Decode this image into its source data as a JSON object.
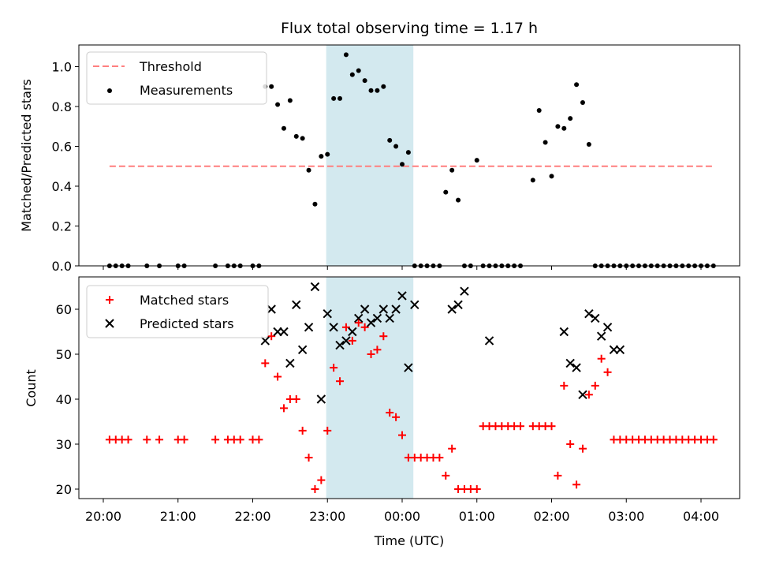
{
  "chart_data": [
    {
      "type": "scatter",
      "title": "Flux total observing time = 1.17 h",
      "xlabel": "",
      "ylabel": "Matched/Predicted stars",
      "ylim": [
        0,
        1.1
      ],
      "yticks": [
        "0.0",
        "0.2",
        "0.4",
        "0.6",
        "0.8",
        "1.0"
      ],
      "highlight_span": {
        "from": "22:59",
        "to": "00:09",
        "color": "#d3e9ef"
      },
      "legend": {
        "placement": "upper-left",
        "entries": [
          "Threshold",
          "Measurements"
        ]
      },
      "series": [
        {
          "name": "Threshold",
          "style": "dashed-line",
          "color": "#ff7f7f",
          "x": [
            "20:05",
            "04:10"
          ],
          "y": [
            0.5,
            0.5
          ]
        },
        {
          "name": "Measurements",
          "style": "dot",
          "color": "#000000",
          "x": [
            "20:05",
            "20:10",
            "20:15",
            "20:20",
            "20:35",
            "20:45",
            "21:00",
            "21:05",
            "21:30",
            "21:40",
            "21:45",
            "21:50",
            "22:00",
            "22:05",
            "22:10",
            "22:15",
            "22:20",
            "22:25",
            "22:30",
            "22:35",
            "22:40",
            "22:45",
            "22:50",
            "22:55",
            "23:00",
            "23:05",
            "23:10",
            "23:15",
            "23:20",
            "23:25",
            "23:30",
            "23:35",
            "23:40",
            "23:45",
            "23:50",
            "23:55",
            "00:00",
            "00:05",
            "00:10",
            "00:15",
            "00:20",
            "00:25",
            "00:30",
            "00:35",
            "00:40",
            "00:45",
            "00:50",
            "00:55",
            "01:00",
            "01:05",
            "01:10",
            "01:15",
            "01:20",
            "01:25",
            "01:30",
            "01:35",
            "01:45",
            "01:50",
            "01:55",
            "02:00",
            "02:05",
            "02:10",
            "02:15",
            "02:20",
            "02:25",
            "02:30",
            "02:35",
            "02:40",
            "02:45",
            "02:50",
            "02:55",
            "03:00",
            "03:05",
            "03:10",
            "03:15",
            "03:20",
            "03:25",
            "03:30",
            "03:35",
            "03:40",
            "03:45",
            "03:50",
            "03:55",
            "04:00",
            "04:05",
            "04:10"
          ],
          "y": [
            0,
            0,
            0,
            0,
            0,
            0,
            0,
            0,
            0,
            0,
            0,
            0,
            0,
            0,
            0.9,
            0.9,
            0.81,
            0.69,
            0.83,
            0.65,
            0.64,
            0.48,
            0.31,
            0.55,
            0.56,
            0.84,
            0.84,
            1.06,
            0.96,
            0.98,
            0.93,
            0.88,
            0.88,
            0.9,
            0.63,
            0.6,
            0.51,
            0.57,
            0,
            0,
            0,
            0,
            0,
            0.37,
            0.48,
            0.33,
            0,
            0,
            0.53,
            0,
            0,
            0,
            0,
            0,
            0,
            0,
            0.43,
            0.78,
            0.62,
            0.45,
            0.7,
            0.69,
            0.74,
            0.91,
            0.82,
            0.61,
            0,
            0,
            0,
            0,
            0,
            0,
            0,
            0,
            0,
            0,
            0,
            0,
            0,
            0,
            0,
            0,
            0,
            0,
            0,
            0
          ]
        }
      ]
    },
    {
      "type": "scatter",
      "xlabel": "Time (UTC)",
      "ylabel": "Count",
      "ylim": [
        18,
        68
      ],
      "yticks": [
        "20",
        "30",
        "40",
        "50",
        "60"
      ],
      "xticks": [
        "20:00",
        "21:00",
        "22:00",
        "23:00",
        "00:00",
        "01:00",
        "02:00",
        "03:00",
        "04:00"
      ],
      "highlight_span": {
        "from": "22:59",
        "to": "00:09",
        "color": "#d3e9ef"
      },
      "legend": {
        "placement": "upper-left",
        "entries": [
          "Matched stars",
          "Predicted stars"
        ]
      },
      "series": [
        {
          "name": "Matched stars",
          "style": "plus",
          "color": "#ff0000",
          "x": [
            "20:05",
            "20:10",
            "20:15",
            "20:20",
            "20:35",
            "20:45",
            "21:00",
            "21:05",
            "21:30",
            "21:40",
            "21:45",
            "21:50",
            "22:00",
            "22:05",
            "22:10",
            "22:15",
            "22:20",
            "22:25",
            "22:30",
            "22:35",
            "22:40",
            "22:45",
            "22:50",
            "22:55",
            "23:00",
            "23:05",
            "23:10",
            "23:15",
            "23:20",
            "23:25",
            "23:30",
            "23:35",
            "23:40",
            "23:45",
            "23:50",
            "23:55",
            "00:00",
            "00:05",
            "00:10",
            "00:15",
            "00:20",
            "00:25",
            "00:30",
            "00:35",
            "00:40",
            "00:45",
            "00:50",
            "00:55",
            "01:00",
            "01:05",
            "01:10",
            "01:15",
            "01:20",
            "01:25",
            "01:30",
            "01:35",
            "01:45",
            "01:50",
            "01:55",
            "02:00",
            "02:05",
            "02:10",
            "02:15",
            "02:20",
            "02:25",
            "02:30",
            "02:35",
            "02:40",
            "02:45",
            "02:50",
            "02:55",
            "03:00",
            "03:05",
            "03:10",
            "03:15",
            "03:20",
            "03:25",
            "03:30",
            "03:35",
            "03:40",
            "03:45",
            "03:50",
            "03:55",
            "04:00",
            "04:05",
            "04:10"
          ],
          "y": [
            31,
            31,
            31,
            31,
            31,
            31,
            31,
            31,
            31,
            31,
            31,
            31,
            31,
            31,
            48,
            54,
            45,
            38,
            40,
            40,
            33,
            27,
            20,
            22,
            33,
            47,
            44,
            56,
            53,
            57,
            56,
            50,
            51,
            54,
            37,
            36,
            32,
            27,
            27,
            27,
            27,
            27,
            27,
            23,
            29,
            20,
            20,
            20,
            20,
            34,
            34,
            34,
            34,
            34,
            34,
            34,
            34,
            34,
            34,
            34,
            23,
            43,
            30,
            21,
            29,
            41,
            43,
            49,
            46,
            31,
            31,
            31,
            31,
            31,
            31,
            31,
            31,
            31,
            31,
            31,
            31,
            31,
            31,
            31,
            31,
            31
          ]
        },
        {
          "name": "Predicted stars",
          "style": "x",
          "color": "#000000",
          "x": [
            "22:10",
            "22:15",
            "22:20",
            "22:25",
            "22:30",
            "22:35",
            "22:40",
            "22:45",
            "22:50",
            "22:55",
            "23:00",
            "23:05",
            "23:10",
            "23:15",
            "23:20",
            "23:25",
            "23:30",
            "23:35",
            "23:40",
            "23:45",
            "23:50",
            "23:55",
            "00:00",
            "00:05",
            "00:10",
            "00:40",
            "00:45",
            "00:50",
            "01:10",
            "02:10",
            "02:15",
            "02:20",
            "02:25",
            "02:30",
            "02:35",
            "02:40",
            "02:45",
            "02:50",
            "02:55"
          ],
          "y": [
            53,
            60,
            55,
            55,
            48,
            61,
            51,
            56,
            65,
            40,
            59,
            56,
            52,
            53,
            55,
            58,
            60,
            57,
            58,
            60,
            58,
            60,
            63,
            47,
            61,
            60,
            61,
            64,
            53,
            55,
            48,
            47,
            41,
            59,
            58,
            54,
            56,
            51,
            51
          ]
        }
      ]
    }
  ]
}
